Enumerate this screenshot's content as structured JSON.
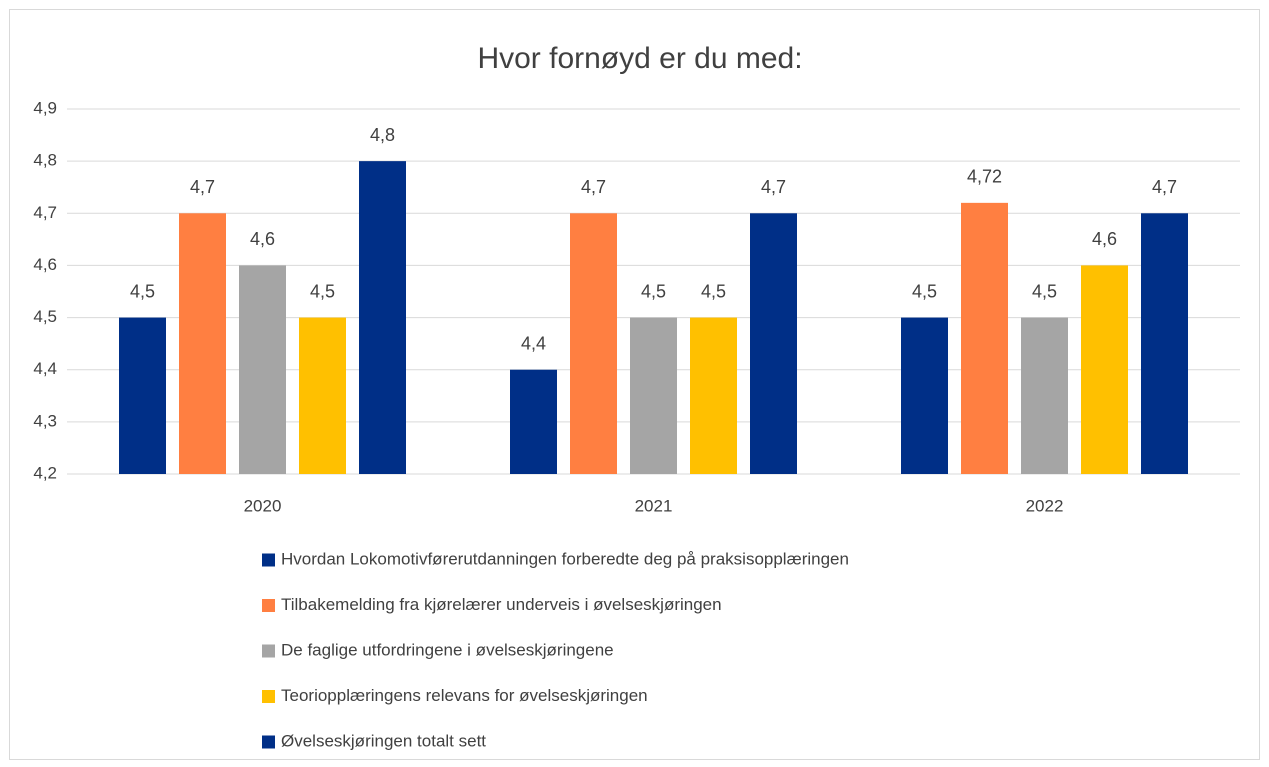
{
  "chart_data": {
    "type": "bar",
    "title": "Hvor fornøyd er du med:",
    "categories": [
      "2020",
      "2021",
      "2022"
    ],
    "series": [
      {
        "name": "Hvordan Lokomotivførerutdanningen forberedte deg på praksisopplæringen",
        "color": "#002f87",
        "values": [
          4.5,
          4.4,
          4.5
        ],
        "value_labels": [
          "4,5",
          "4,4",
          "4,5"
        ]
      },
      {
        "name": "Tilbakemelding fra kjørelærer underveis i øvelseskjøringen",
        "color": "#ff7f41",
        "values": [
          4.7,
          4.7,
          4.72
        ],
        "value_labels": [
          "4,7",
          "4,7",
          "4,72"
        ]
      },
      {
        "name": "De faglige utfordringene i øvelseskjøringene",
        "color": "#a5a5a5",
        "values": [
          4.6,
          4.5,
          4.5
        ],
        "value_labels": [
          "4,6",
          "4,5",
          "4,5"
        ]
      },
      {
        "name": "Teoriopplæringens relevans for øvelseskjøringen",
        "color": "#ffc000",
        "values": [
          4.5,
          4.5,
          4.6
        ],
        "value_labels": [
          "4,5",
          "4,5",
          "4,6"
        ]
      },
      {
        "name": "Øvelseskjøringen totalt sett",
        "color": "#002f87",
        "values": [
          4.8,
          4.7,
          4.7
        ],
        "value_labels": [
          "4,8",
          "4,7",
          "4,7"
        ]
      }
    ],
    "ylim": [
      4.2,
      4.9
    ],
    "yticks": [
      {
        "value": 4.2,
        "label": "4,2"
      },
      {
        "value": 4.3,
        "label": "4,3"
      },
      {
        "value": 4.4,
        "label": "4,4"
      },
      {
        "value": 4.5,
        "label": "4,5"
      },
      {
        "value": 4.6,
        "label": "4,6"
      },
      {
        "value": 4.7,
        "label": "4,7"
      },
      {
        "value": 4.8,
        "label": "4,8"
      },
      {
        "value": 4.9,
        "label": "4,9"
      }
    ],
    "grid": true,
    "legend": "bottom"
  }
}
